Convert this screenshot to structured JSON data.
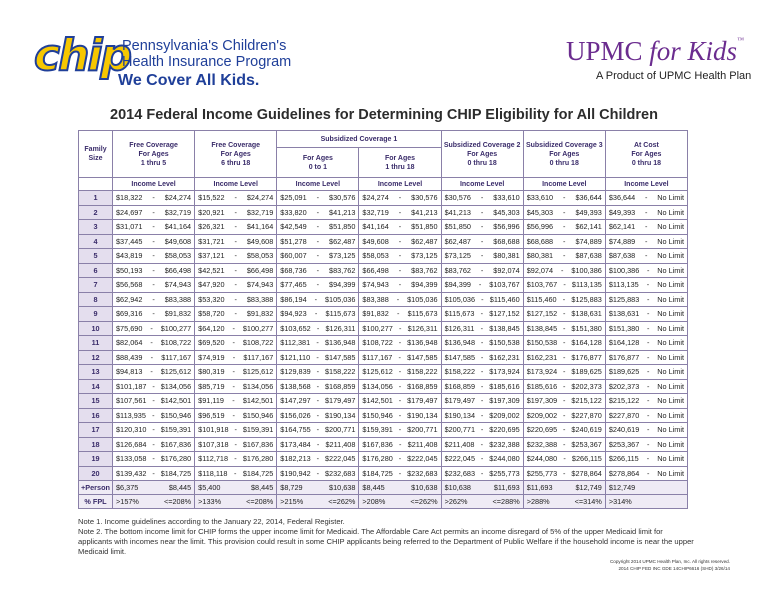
{
  "header": {
    "chip": "chip",
    "org_line1": "Pennsylvania's Children's",
    "org_line2": "Health Insurance Program",
    "slogan": "We Cover All Kids.",
    "brand_upmc": "UPMC",
    "brand_for_kids": "for Kids",
    "brand_tm": "™",
    "brand_sub": "A Product of UPMC Health Plan"
  },
  "title": "2014 Federal Income Guidelines for Determining CHIP Eligibility for All Children",
  "table": {
    "family_size": "Family Size",
    "sub1_title": "Subsidized Coverage 1",
    "columns": [
      {
        "title": "Free Coverage",
        "for": "For Ages",
        "ages": "1 thru 5"
      },
      {
        "title": "Free Coverage",
        "for": "For Ages",
        "ages": "6 thru 18"
      },
      {
        "title": "",
        "for": "For Ages",
        "ages": "0 to 1"
      },
      {
        "title": "",
        "for": "For Ages",
        "ages": "1 thru 18"
      },
      {
        "title": "Subsidized Coverage 2",
        "for": "For Ages",
        "ages": "0 thru 18"
      },
      {
        "title": "Subsidized Coverage 3",
        "for": "For Ages",
        "ages": "0 thru 18"
      },
      {
        "title": "At Cost",
        "for": "For Ages",
        "ages": "0 thru 18"
      }
    ],
    "income_level": "Income Level",
    "separator": "-",
    "no_limit": "No Limit",
    "rows": [
      {
        "label": "1",
        "cells": [
          "$18,322",
          "$24,274",
          "$15,522",
          "$24,274",
          "$25,091",
          "$30,576",
          "$24,274",
          "$30,576",
          "$30,576",
          "$33,610",
          "$33,610",
          "$36,644",
          "$36,644"
        ]
      },
      {
        "label": "2",
        "cells": [
          "$24,697",
          "$32,719",
          "$20,921",
          "$32,719",
          "$33,820",
          "$41,213",
          "$32,719",
          "$41,213",
          "$41,213",
          "$45,303",
          "$45,303",
          "$49,393",
          "$49,393"
        ]
      },
      {
        "label": "3",
        "cells": [
          "$31,071",
          "$41,164",
          "$26,321",
          "$41,164",
          "$42,549",
          "$51,850",
          "$41,164",
          "$51,850",
          "$51,850",
          "$56,996",
          "$56,996",
          "$62,141",
          "$62,141"
        ]
      },
      {
        "label": "4",
        "cells": [
          "$37,445",
          "$49,608",
          "$31,721",
          "$49,608",
          "$51,278",
          "$62,487",
          "$49,608",
          "$62,487",
          "$62,487",
          "$68,688",
          "$68,688",
          "$74,889",
          "$74,889"
        ]
      },
      {
        "label": "5",
        "cells": [
          "$43,819",
          "$58,053",
          "$37,121",
          "$58,053",
          "$60,007",
          "$73,125",
          "$58,053",
          "$73,125",
          "$73,125",
          "$80,381",
          "$80,381",
          "$87,638",
          "$87,638"
        ]
      },
      {
        "label": "6",
        "cells": [
          "$50,193",
          "$66,498",
          "$42,521",
          "$66,498",
          "$68,736",
          "$83,762",
          "$66,498",
          "$83,762",
          "$83,762",
          "$92,074",
          "$92,074",
          "$100,386",
          "$100,386"
        ]
      },
      {
        "label": "7",
        "cells": [
          "$56,568",
          "$74,943",
          "$47,920",
          "$74,943",
          "$77,465",
          "$94,399",
          "$74,943",
          "$94,399",
          "$94,399",
          "$103,767",
          "$103,767",
          "$113,135",
          "$113,135"
        ]
      },
      {
        "label": "8",
        "cells": [
          "$62,942",
          "$83,388",
          "$53,320",
          "$83,388",
          "$86,194",
          "$105,036",
          "$83,388",
          "$105,036",
          "$105,036",
          "$115,460",
          "$115,460",
          "$125,883",
          "$125,883"
        ]
      },
      {
        "label": "9",
        "cells": [
          "$69,316",
          "$91,832",
          "$58,720",
          "$91,832",
          "$94,923",
          "$115,673",
          "$91,832",
          "$115,673",
          "$115,673",
          "$127,152",
          "$127,152",
          "$138,631",
          "$138,631"
        ]
      },
      {
        "label": "10",
        "cells": [
          "$75,690",
          "$100,277",
          "$64,120",
          "$100,277",
          "$103,652",
          "$126,311",
          "$100,277",
          "$126,311",
          "$126,311",
          "$138,845",
          "$138,845",
          "$151,380",
          "$151,380"
        ]
      },
      {
        "label": "11",
        "cells": [
          "$82,064",
          "$108,722",
          "$69,520",
          "$108,722",
          "$112,381",
          "$136,948",
          "$108,722",
          "$136,948",
          "$136,948",
          "$150,538",
          "$150,538",
          "$164,128",
          "$164,128"
        ]
      },
      {
        "label": "12",
        "cells": [
          "$88,439",
          "$117,167",
          "$74,919",
          "$117,167",
          "$121,110",
          "$147,585",
          "$117,167",
          "$147,585",
          "$147,585",
          "$162,231",
          "$162,231",
          "$176,877",
          "$176,877"
        ]
      },
      {
        "label": "13",
        "cells": [
          "$94,813",
          "$125,612",
          "$80,319",
          "$125,612",
          "$129,839",
          "$158,222",
          "$125,612",
          "$158,222",
          "$158,222",
          "$173,924",
          "$173,924",
          "$189,625",
          "$189,625"
        ]
      },
      {
        "label": "14",
        "cells": [
          "$101,187",
          "$134,056",
          "$85,719",
          "$134,056",
          "$138,568",
          "$168,859",
          "$134,056",
          "$168,859",
          "$168,859",
          "$185,616",
          "$185,616",
          "$202,373",
          "$202,373"
        ]
      },
      {
        "label": "15",
        "cells": [
          "$107,561",
          "$142,501",
          "$91,119",
          "$142,501",
          "$147,297",
          "$179,497",
          "$142,501",
          "$179,497",
          "$179,497",
          "$197,309",
          "$197,309",
          "$215,122",
          "$215,122"
        ]
      },
      {
        "label": "16",
        "cells": [
          "$113,935",
          "$150,946",
          "$96,519",
          "$150,946",
          "$156,026",
          "$190,134",
          "$150,946",
          "$190,134",
          "$190,134",
          "$209,002",
          "$209,002",
          "$227,870",
          "$227,870"
        ]
      },
      {
        "label": "17",
        "cells": [
          "$120,310",
          "$159,391",
          "$101,918",
          "$159,391",
          "$164,755",
          "$200,771",
          "$159,391",
          "$200,771",
          "$200,771",
          "$220,695",
          "$220,695",
          "$240,619",
          "$240,619"
        ]
      },
      {
        "label": "18",
        "cells": [
          "$126,684",
          "$167,836",
          "$107,318",
          "$167,836",
          "$173,484",
          "$211,408",
          "$167,836",
          "$211,408",
          "$211,408",
          "$232,388",
          "$232,388",
          "$253,367",
          "$253,367"
        ]
      },
      {
        "label": "19",
        "cells": [
          "$133,058",
          "$176,280",
          "$112,718",
          "$176,280",
          "$182,213",
          "$222,045",
          "$176,280",
          "$222,045",
          "$222,045",
          "$244,080",
          "$244,080",
          "$266,115",
          "$266,115"
        ]
      },
      {
        "label": "20",
        "cells": [
          "$139,432",
          "$184,725",
          "$118,118",
          "$184,725",
          "$190,942",
          "$232,683",
          "$184,725",
          "$232,683",
          "$232,683",
          "$255,773",
          "$255,773",
          "$278,864",
          "$278,864"
        ]
      },
      {
        "label": "+Person",
        "cells": [
          "$6,375",
          "$8,445",
          "$5,400",
          "$8,445",
          "$8,729",
          "$10,638",
          "$8,445",
          "$10,638",
          "$10,638",
          "$11,693",
          "$11,693",
          "$12,749",
          "$12,749"
        ]
      },
      {
        "label": "% FPL",
        "cells": [
          ">157%",
          "<=208%",
          ">133%",
          "<=208%",
          ">215%",
          "<=262%",
          ">208%",
          "<=262%",
          ">262%",
          "<=288%",
          ">288%",
          "<=314%",
          ">314%"
        ]
      }
    ]
  },
  "notes": [
    "Note 1.  Income guidelines according to the January 22, 2014, Federal Register.",
    "Note 2. The bottom income limit for CHIP forms the upper income limit for Medicaid.  The Affordable Care Act permits an income disregard of 5% of the upper Medicaid limit for applicants with incomes near the limit.  This provision could result in some CHIP applicants being referred to the Department of Public Welfare if the household income is near the upper Medicaid limit."
  ],
  "footer": {
    "copyright": "Copyright 2014 UPMC Health Plan, Inc. All rights reserved.",
    "code": "2014 CHIP FED INC GDE 14CHIP6616 (SHD) 3/26/14"
  }
}
